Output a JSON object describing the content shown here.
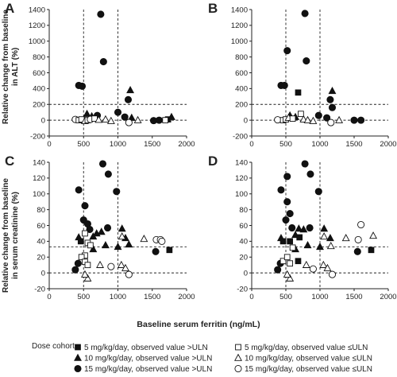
{
  "figure": {
    "x_axis_label": "Baseline serum ferritin (ng/mL)",
    "y_label_top_line1": "Relative change from baseline",
    "y_label_top_line2": "in ALT (%)",
    "y_label_bottom_line1": "Relative change from baseline",
    "y_label_bottom_line2": "in serum creatinine (%)"
  },
  "legend": {
    "title": "Dose cohort",
    "entries": [
      {
        "label": "5 mg/kg/day, observed value >ULN",
        "marker": "square",
        "filled": true
      },
      {
        "label": "10 mg/kg/day, observed value >ULN",
        "marker": "triangle",
        "filled": true
      },
      {
        "label": "15 mg/kg/day, observed value >ULN",
        "marker": "circle",
        "filled": true
      },
      {
        "label": "5 mg/kg/day, observed value ≤ULN",
        "marker": "square",
        "filled": false
      },
      {
        "label": "10 mg/kg/day, observed value ≤ULN",
        "marker": "triangle",
        "filled": false
      },
      {
        "label": "15 mg/kg/day, observed value ≤ULN",
        "marker": "circle",
        "filled": false
      }
    ]
  },
  "chart_data": [
    {
      "panel": "A",
      "type": "scatter",
      "xlim": [
        0,
        2000
      ],
      "ylim": [
        -200,
        1400
      ],
      "xticks": [
        0,
        500,
        1000,
        1500,
        2000
      ],
      "yticks": [
        -200,
        0,
        200,
        400,
        600,
        800,
        1000,
        1200,
        1400
      ],
      "vlines": [
        500,
        1000
      ],
      "hlines": [
        0,
        200
      ],
      "points": [
        {
          "x": 750,
          "y": 1340,
          "m": "circle",
          "f": true
        },
        {
          "x": 790,
          "y": 740,
          "m": "circle",
          "f": true
        },
        {
          "x": 430,
          "y": 440,
          "m": "circle",
          "f": true
        },
        {
          "x": 480,
          "y": 430,
          "m": "circle",
          "f": true
        },
        {
          "x": 1180,
          "y": 380,
          "m": "triangle",
          "f": true
        },
        {
          "x": 1150,
          "y": 260,
          "m": "circle",
          "f": true
        },
        {
          "x": 550,
          "y": 80,
          "m": "triangle",
          "f": true
        },
        {
          "x": 620,
          "y": 50,
          "m": "triangle",
          "f": true
        },
        {
          "x": 700,
          "y": 60,
          "m": "circle",
          "f": true
        },
        {
          "x": 1000,
          "y": 100,
          "m": "circle",
          "f": true
        },
        {
          "x": 1100,
          "y": 40,
          "m": "circle",
          "f": true
        },
        {
          "x": 1200,
          "y": 30,
          "m": "triangle",
          "f": true
        },
        {
          "x": 1520,
          "y": -5,
          "m": "circle",
          "f": true
        },
        {
          "x": 1600,
          "y": 0,
          "m": "circle",
          "f": true
        },
        {
          "x": 1780,
          "y": 40,
          "m": "triangle",
          "f": true
        },
        {
          "x": 1730,
          "y": 10,
          "m": "square",
          "f": true
        },
        {
          "x": 380,
          "y": 10,
          "m": "circle",
          "f": false
        },
        {
          "x": 430,
          "y": 0,
          "m": "square",
          "f": false
        },
        {
          "x": 470,
          "y": 10,
          "m": "square",
          "f": false
        },
        {
          "x": 520,
          "y": -10,
          "m": "triangle",
          "f": false
        },
        {
          "x": 560,
          "y": 0,
          "m": "square",
          "f": false
        },
        {
          "x": 600,
          "y": 10,
          "m": "circle",
          "f": false
        },
        {
          "x": 660,
          "y": 20,
          "m": "square",
          "f": false
        },
        {
          "x": 720,
          "y": 5,
          "m": "triangle",
          "f": false
        },
        {
          "x": 820,
          "y": 10,
          "m": "triangle",
          "f": false
        },
        {
          "x": 900,
          "y": -10,
          "m": "triangle",
          "f": false
        },
        {
          "x": 1160,
          "y": -30,
          "m": "circle",
          "f": false
        },
        {
          "x": 1290,
          "y": 0,
          "m": "triangle",
          "f": false
        },
        {
          "x": 1690,
          "y": 0,
          "m": "square",
          "f": false
        }
      ]
    },
    {
      "panel": "B",
      "type": "scatter",
      "xlim": [
        0,
        2000
      ],
      "ylim": [
        -200,
        1400
      ],
      "xticks": [
        0,
        500,
        1000,
        1500,
        2000
      ],
      "yticks": [
        -200,
        0,
        200,
        400,
        600,
        800,
        1000,
        1200,
        1400
      ],
      "vlines": [
        500,
        1000
      ],
      "hlines": [
        0,
        200
      ],
      "points": [
        {
          "x": 780,
          "y": 1350,
          "m": "circle",
          "f": true
        },
        {
          "x": 520,
          "y": 880,
          "m": "circle",
          "f": true
        },
        {
          "x": 800,
          "y": 750,
          "m": "circle",
          "f": true
        },
        {
          "x": 430,
          "y": 440,
          "m": "circle",
          "f": true
        },
        {
          "x": 480,
          "y": 440,
          "m": "circle",
          "f": true
        },
        {
          "x": 680,
          "y": 350,
          "m": "square",
          "f": true
        },
        {
          "x": 1180,
          "y": 370,
          "m": "triangle",
          "f": true
        },
        {
          "x": 1150,
          "y": 260,
          "m": "circle",
          "f": true
        },
        {
          "x": 1180,
          "y": 160,
          "m": "circle",
          "f": true
        },
        {
          "x": 560,
          "y": 60,
          "m": "triangle",
          "f": true
        },
        {
          "x": 640,
          "y": 40,
          "m": "triangle",
          "f": true
        },
        {
          "x": 980,
          "y": 60,
          "m": "circle",
          "f": true
        },
        {
          "x": 1100,
          "y": 30,
          "m": "circle",
          "f": true
        },
        {
          "x": 1500,
          "y": 0,
          "m": "circle",
          "f": true
        },
        {
          "x": 1600,
          "y": 0,
          "m": "circle",
          "f": true
        },
        {
          "x": 380,
          "y": 5,
          "m": "circle",
          "f": false
        },
        {
          "x": 460,
          "y": 0,
          "m": "square",
          "f": false
        },
        {
          "x": 500,
          "y": 10,
          "m": "square",
          "f": false
        },
        {
          "x": 540,
          "y": 30,
          "m": "triangle",
          "f": false
        },
        {
          "x": 600,
          "y": 20,
          "m": "square",
          "f": false
        },
        {
          "x": 720,
          "y": 80,
          "m": "square",
          "f": false
        },
        {
          "x": 760,
          "y": 10,
          "m": "triangle",
          "f": false
        },
        {
          "x": 820,
          "y": 0,
          "m": "triangle",
          "f": false
        },
        {
          "x": 900,
          "y": -10,
          "m": "triangle",
          "f": false
        },
        {
          "x": 1160,
          "y": -30,
          "m": "circle",
          "f": false
        },
        {
          "x": 1280,
          "y": 0,
          "m": "triangle",
          "f": false
        }
      ]
    },
    {
      "panel": "C",
      "type": "scatter",
      "xlim": [
        0,
        2000
      ],
      "ylim": [
        -20,
        140
      ],
      "xticks": [
        0,
        500,
        1000,
        1500,
        2000
      ],
      "yticks": [
        -20,
        0,
        20,
        40,
        60,
        80,
        100,
        120,
        140
      ],
      "vlines": [
        500,
        1000
      ],
      "hlines": [
        0,
        33
      ],
      "points": [
        {
          "x": 780,
          "y": 138,
          "m": "circle",
          "f": true
        },
        {
          "x": 860,
          "y": 125,
          "m": "circle",
          "f": true
        },
        {
          "x": 430,
          "y": 105,
          "m": "circle",
          "f": true
        },
        {
          "x": 980,
          "y": 103,
          "m": "circle",
          "f": true
        },
        {
          "x": 520,
          "y": 85,
          "m": "circle",
          "f": true
        },
        {
          "x": 500,
          "y": 67,
          "m": "circle",
          "f": true
        },
        {
          "x": 560,
          "y": 62,
          "m": "circle",
          "f": true
        },
        {
          "x": 590,
          "y": 55,
          "m": "circle",
          "f": true
        },
        {
          "x": 850,
          "y": 57,
          "m": "circle",
          "f": true
        },
        {
          "x": 1060,
          "y": 56,
          "m": "triangle",
          "f": true
        },
        {
          "x": 690,
          "y": 50,
          "m": "triangle",
          "f": true
        },
        {
          "x": 760,
          "y": 52,
          "m": "triangle",
          "f": true
        },
        {
          "x": 640,
          "y": 46,
          "m": "triangle",
          "f": true
        },
        {
          "x": 430,
          "y": 45,
          "m": "triangle",
          "f": true
        },
        {
          "x": 460,
          "y": 40,
          "m": "square",
          "f": true
        },
        {
          "x": 640,
          "y": 30,
          "m": "triangle",
          "f": true
        },
        {
          "x": 820,
          "y": 35,
          "m": "triangle",
          "f": true
        },
        {
          "x": 1000,
          "y": 33,
          "m": "triangle",
          "f": true
        },
        {
          "x": 1110,
          "y": 44,
          "m": "triangle",
          "f": true
        },
        {
          "x": 1160,
          "y": 36,
          "m": "triangle",
          "f": true
        },
        {
          "x": 1550,
          "y": 27,
          "m": "circle",
          "f": true
        },
        {
          "x": 1750,
          "y": 29,
          "m": "square",
          "f": true
        },
        {
          "x": 420,
          "y": 12,
          "m": "circle",
          "f": true
        },
        {
          "x": 380,
          "y": 4,
          "m": "circle",
          "f": true
        },
        {
          "x": 520,
          "y": 50,
          "m": "square",
          "f": false
        },
        {
          "x": 560,
          "y": 38,
          "m": "square",
          "f": false
        },
        {
          "x": 600,
          "y": 35,
          "m": "square",
          "f": false
        },
        {
          "x": 520,
          "y": 22,
          "m": "square",
          "f": false
        },
        {
          "x": 470,
          "y": 20,
          "m": "square",
          "f": false
        },
        {
          "x": 520,
          "y": 14,
          "m": "square",
          "f": false
        },
        {
          "x": 560,
          "y": 10,
          "m": "square",
          "f": false
        },
        {
          "x": 560,
          "y": -7,
          "m": "triangle",
          "f": false
        },
        {
          "x": 520,
          "y": -2,
          "m": "triangle",
          "f": false
        },
        {
          "x": 740,
          "y": 10,
          "m": "triangle",
          "f": false
        },
        {
          "x": 900,
          "y": 8,
          "m": "circle",
          "f": false
        },
        {
          "x": 1060,
          "y": 46,
          "m": "triangle",
          "f": false
        },
        {
          "x": 1050,
          "y": 10,
          "m": "triangle",
          "f": false
        },
        {
          "x": 1110,
          "y": 6,
          "m": "triangle",
          "f": false
        },
        {
          "x": 1160,
          "y": -2,
          "m": "circle",
          "f": false
        },
        {
          "x": 1380,
          "y": 43,
          "m": "triangle",
          "f": false
        },
        {
          "x": 1560,
          "y": 42,
          "m": "circle",
          "f": false
        },
        {
          "x": 1620,
          "y": 42,
          "m": "circle",
          "f": false
        },
        {
          "x": 1640,
          "y": 40,
          "m": "circle",
          "f": false
        }
      ]
    },
    {
      "panel": "D",
      "type": "scatter",
      "xlim": [
        0,
        2000
      ],
      "ylim": [
        -20,
        140
      ],
      "xticks": [
        0,
        500,
        1000,
        1500,
        2000
      ],
      "yticks": [
        -20,
        0,
        20,
        40,
        60,
        80,
        100,
        120,
        140
      ],
      "vlines": [
        500,
        1000
      ],
      "hlines": [
        0,
        33
      ],
      "points": [
        {
          "x": 780,
          "y": 138,
          "m": "circle",
          "f": true
        },
        {
          "x": 860,
          "y": 125,
          "m": "circle",
          "f": true
        },
        {
          "x": 520,
          "y": 122,
          "m": "circle",
          "f": true
        },
        {
          "x": 430,
          "y": 105,
          "m": "circle",
          "f": true
        },
        {
          "x": 980,
          "y": 103,
          "m": "circle",
          "f": true
        },
        {
          "x": 520,
          "y": 90,
          "m": "circle",
          "f": true
        },
        {
          "x": 560,
          "y": 75,
          "m": "circle",
          "f": true
        },
        {
          "x": 500,
          "y": 67,
          "m": "circle",
          "f": true
        },
        {
          "x": 590,
          "y": 57,
          "m": "circle",
          "f": true
        },
        {
          "x": 850,
          "y": 57,
          "m": "circle",
          "f": true
        },
        {
          "x": 690,
          "y": 56,
          "m": "triangle",
          "f": true
        },
        {
          "x": 760,
          "y": 55,
          "m": "triangle",
          "f": true
        },
        {
          "x": 1060,
          "y": 56,
          "m": "triangle",
          "f": true
        },
        {
          "x": 640,
          "y": 48,
          "m": "triangle",
          "f": true
        },
        {
          "x": 430,
          "y": 44,
          "m": "triangle",
          "f": true
        },
        {
          "x": 460,
          "y": 40,
          "m": "square",
          "f": true
        },
        {
          "x": 560,
          "y": 40,
          "m": "square",
          "f": true
        },
        {
          "x": 700,
          "y": 45,
          "m": "square",
          "f": true
        },
        {
          "x": 640,
          "y": 30,
          "m": "triangle",
          "f": true
        },
        {
          "x": 820,
          "y": 35,
          "m": "triangle",
          "f": true
        },
        {
          "x": 1000,
          "y": 33,
          "m": "triangle",
          "f": true
        },
        {
          "x": 1150,
          "y": 44,
          "m": "triangle",
          "f": true
        },
        {
          "x": 1550,
          "y": 27,
          "m": "circle",
          "f": true
        },
        {
          "x": 1750,
          "y": 29,
          "m": "square",
          "f": true
        },
        {
          "x": 420,
          "y": 12,
          "m": "circle",
          "f": true
        },
        {
          "x": 380,
          "y": 4,
          "m": "circle",
          "f": true
        },
        {
          "x": 680,
          "y": 15,
          "m": "square",
          "f": true
        },
        {
          "x": 460,
          "y": 15,
          "m": "square",
          "f": false
        },
        {
          "x": 520,
          "y": 20,
          "m": "square",
          "f": false
        },
        {
          "x": 560,
          "y": 12,
          "m": "square",
          "f": false
        },
        {
          "x": 600,
          "y": 32,
          "m": "square",
          "f": false
        },
        {
          "x": 560,
          "y": -7,
          "m": "triangle",
          "f": false
        },
        {
          "x": 520,
          "y": -2,
          "m": "triangle",
          "f": false
        },
        {
          "x": 800,
          "y": 10,
          "m": "triangle",
          "f": false
        },
        {
          "x": 900,
          "y": 5,
          "m": "circle",
          "f": false
        },
        {
          "x": 1060,
          "y": 46,
          "m": "triangle",
          "f": false
        },
        {
          "x": 1050,
          "y": 10,
          "m": "triangle",
          "f": false
        },
        {
          "x": 1110,
          "y": 6,
          "m": "triangle",
          "f": false
        },
        {
          "x": 1160,
          "y": 34,
          "m": "triangle",
          "f": false
        },
        {
          "x": 1180,
          "y": -2,
          "m": "circle",
          "f": false
        },
        {
          "x": 1380,
          "y": 44,
          "m": "triangle",
          "f": false
        },
        {
          "x": 1560,
          "y": 42,
          "m": "circle",
          "f": false
        },
        {
          "x": 1600,
          "y": 61,
          "m": "circle",
          "f": false
        },
        {
          "x": 1780,
          "y": 47,
          "m": "triangle",
          "f": false
        }
      ]
    }
  ]
}
